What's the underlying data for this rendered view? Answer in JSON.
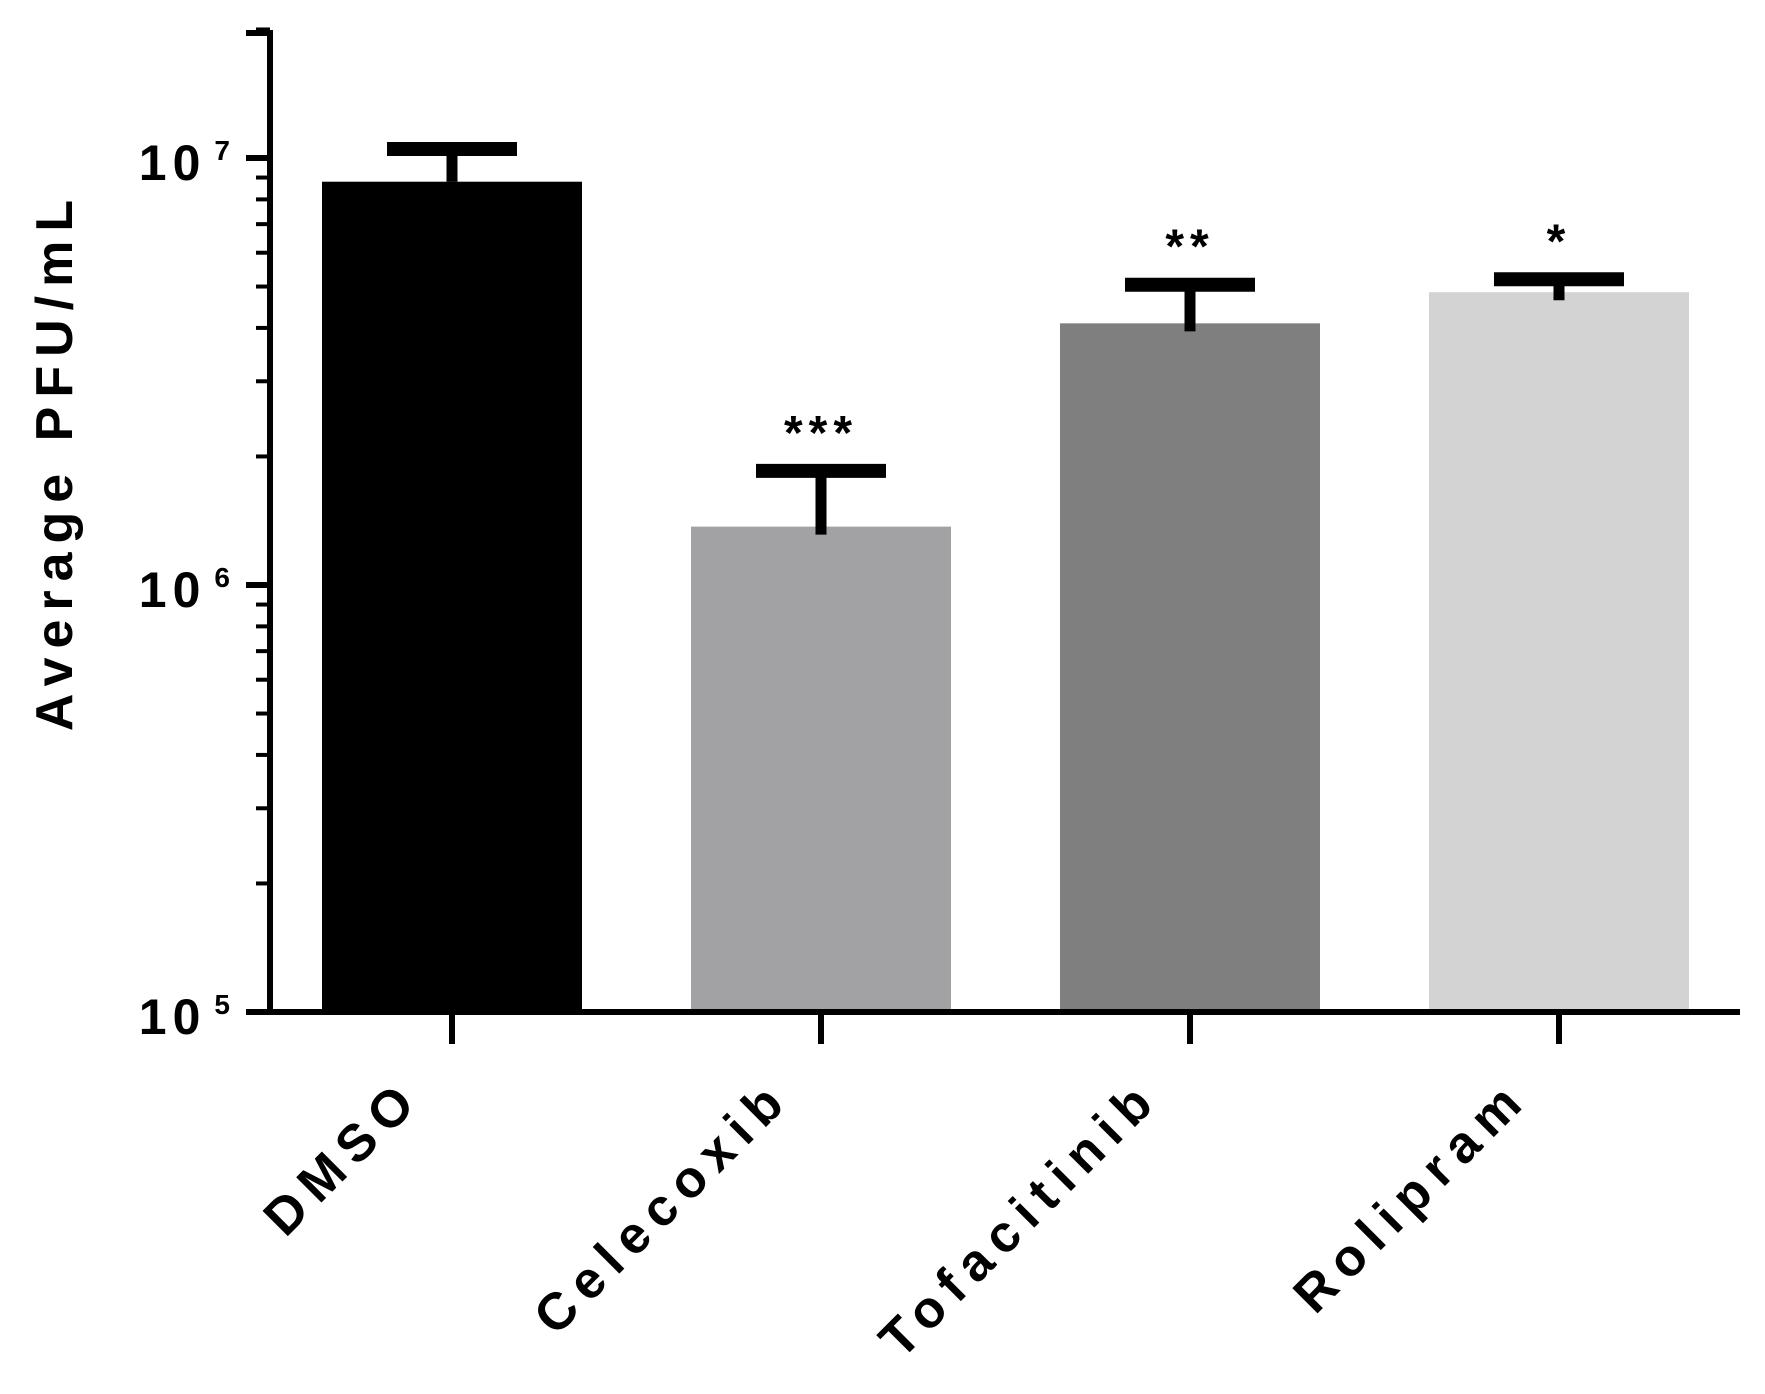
{
  "chart_data": {
    "type": "bar",
    "title": "",
    "xlabel": "",
    "ylabel": "Average PFU/mL",
    "yscale": "log",
    "ylim": [
      100000,
      22000000
    ],
    "yticks": [
      {
        "value": 100000,
        "base": "10",
        "exp": "5"
      },
      {
        "value": 1000000,
        "base": "10",
        "exp": "6"
      },
      {
        "value": 10000000,
        "base": "10",
        "exp": "7"
      }
    ],
    "grid": false,
    "legend": "none",
    "categories": [
      "DMSO",
      "Celecoxib",
      "Tofacitinib",
      "Rolipram"
    ],
    "values": [
      8800000,
      1370000,
      4100000,
      4850000
    ],
    "error_upper": [
      10500000,
      1850000,
      5050000,
      5200000
    ],
    "significance": [
      "",
      "***",
      "**",
      "*"
    ],
    "colors": [
      "#000000",
      "#a2a2a5",
      "#7f7f7f",
      "#d3d3d3"
    ]
  }
}
